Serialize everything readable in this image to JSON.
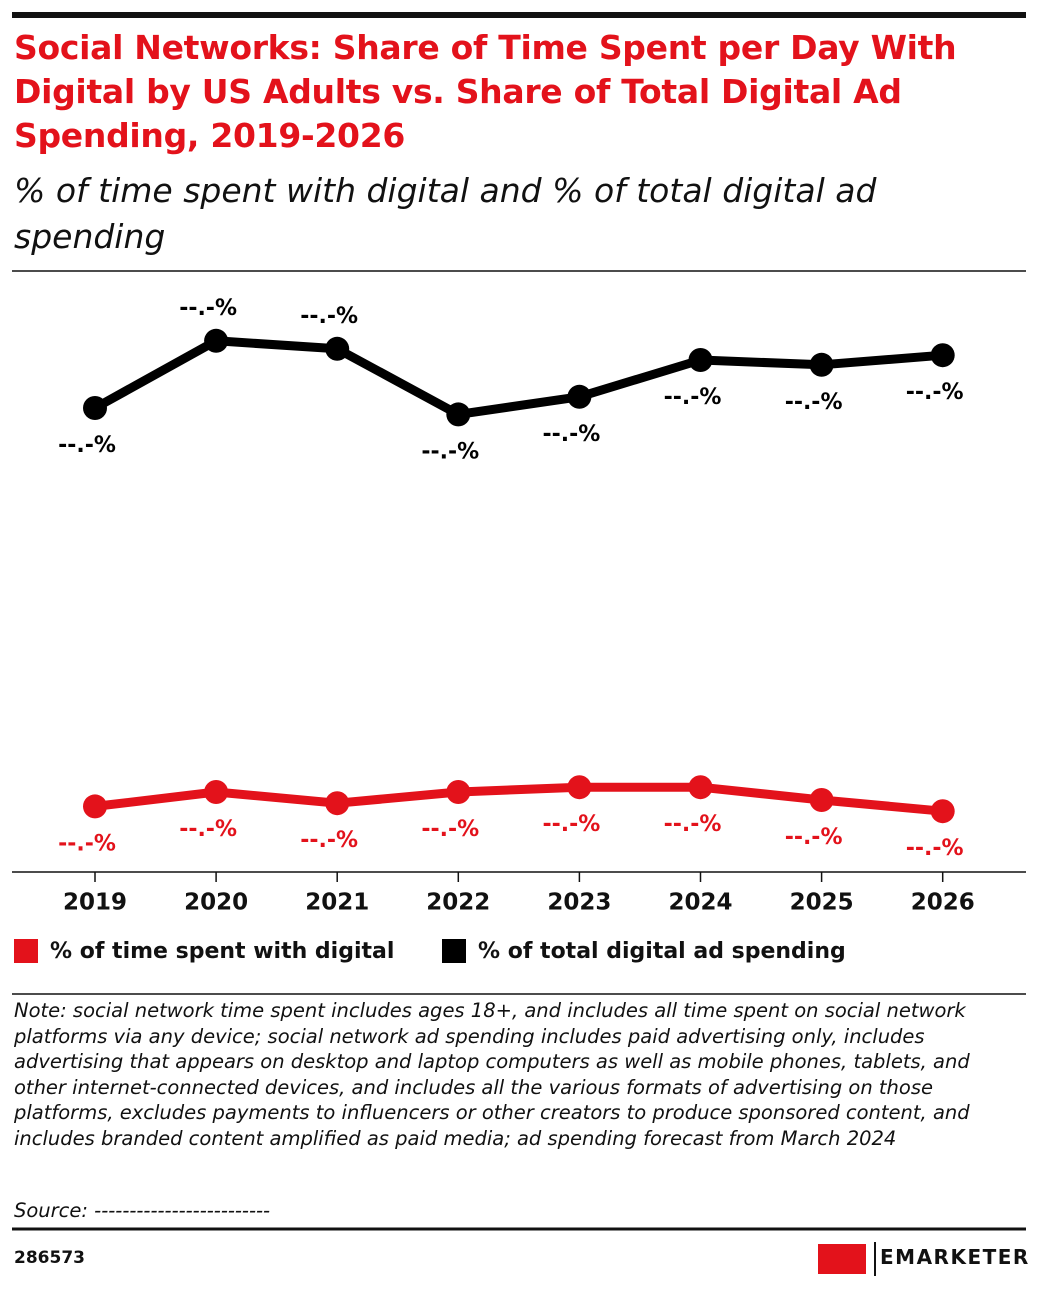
{
  "chart_data": {
    "type": "line",
    "title": "Social Networks: Share of Time Spent per Day With Digital by US Adults vs. Share of Total Digital Ad Spending, 2019-2026",
    "subtitle": "% of time spent with digital and % of total digital ad spending",
    "categories": [
      "2019",
      "2020",
      "2021",
      "2022",
      "2023",
      "2024",
      "2025",
      "2026"
    ],
    "series": [
      {
        "name": "% of time spent with digital",
        "color": "#e3121b",
        "values": [
          4.1,
          5.0,
          4.3,
          5.0,
          5.3,
          5.3,
          4.5,
          3.8
        ],
        "value_labels": [
          "--.-%",
          "--.-%",
          "--.-%",
          "--.-%",
          "--.-%",
          "--.-%",
          "--.-%",
          "--.-%"
        ]
      },
      {
        "name": "% of total digital ad spending",
        "color": "#000000",
        "values": [
          29.0,
          33.2,
          32.7,
          28.6,
          29.7,
          32.0,
          31.7,
          32.3
        ],
        "value_labels": [
          "--.-%",
          "--.-%",
          "--.-%",
          "--.-%",
          "--.-%",
          "--.-%",
          "--.-%",
          "--.-%"
        ]
      }
    ],
    "note": "Note: social network time spent includes ages 18+, and includes all time spent on social network platforms via any device; social network ad spending includes paid advertising only, includes advertising that appears on desktop and laptop computers as well as mobile phones, tablets, and other internet-connected devices, and includes all the various formats of advertising on those platforms, excludes payments to influencers or other creators to produce sponsored content, and includes branded content amplified as paid media; ad spending forecast from March 2024",
    "source": "Source: -------------------------",
    "chart_id": "286573",
    "brand": "EMARKETER"
  }
}
